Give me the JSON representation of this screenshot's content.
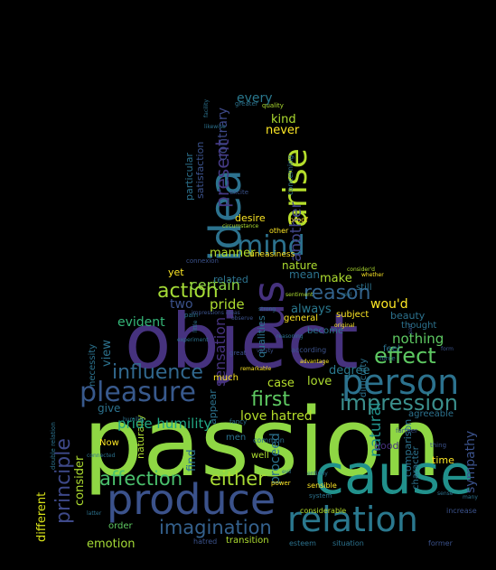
{
  "background": "#000000",
  "palette": {
    "purple": "#472d7b",
    "indigo": "#3b528b",
    "blue": "#2c728e",
    "teal": "#21918c",
    "green": "#28ae80",
    "lime": "#5ec962",
    "yellowgreen": "#addc30",
    "yellow": "#fde725"
  },
  "words": [
    {
      "text": "passion",
      "color": "#8fd744"
    },
    {
      "text": "object",
      "color": "#46327e"
    },
    {
      "text": "cause",
      "color": "#21918c"
    },
    {
      "text": "produce",
      "color": "#3b528b"
    },
    {
      "text": "relation",
      "color": "#2a788e"
    },
    {
      "text": "idea",
      "color": "#2c728e"
    },
    {
      "text": "person",
      "color": "#2c728e"
    },
    {
      "text": "us",
      "color": "#46327e"
    },
    {
      "text": "mind",
      "color": "#2c728e"
    },
    {
      "text": "arise",
      "color": "#b5de2b"
    },
    {
      "text": "pleasure",
      "color": "#38598c"
    },
    {
      "text": "impression",
      "color": "#3b8f8c"
    },
    {
      "text": "effect",
      "color": "#5ec962"
    },
    {
      "text": "reason",
      "color": "#33638d"
    },
    {
      "text": "action",
      "color": "#a5db36"
    },
    {
      "text": "influence",
      "color": "#31688e"
    },
    {
      "text": "imagination",
      "color": "#34618d"
    },
    {
      "text": "affection",
      "color": "#4ac16d"
    },
    {
      "text": "either",
      "color": "#a8db34"
    },
    {
      "text": "principle",
      "color": "#3e4989"
    },
    {
      "text": "present",
      "color": "#443983"
    },
    {
      "text": "first",
      "color": "#5ec962"
    },
    {
      "text": "pride humility",
      "color": "#22a884"
    },
    {
      "text": "love hatred",
      "color": "#b5de2b"
    },
    {
      "text": "nothing",
      "color": "#5ec962"
    },
    {
      "text": "sensation",
      "color": "#46337e"
    },
    {
      "text": "another",
      "color": "#414487"
    },
    {
      "text": "certain",
      "color": "#8fd744"
    },
    {
      "text": "evident",
      "color": "#35b779"
    },
    {
      "text": "two",
      "color": "#3b528b"
    },
    {
      "text": "pride",
      "color": "#addc30"
    },
    {
      "text": "always",
      "color": "#2a788e"
    },
    {
      "text": "wou'd",
      "color": "#fde725"
    },
    {
      "text": "make",
      "color": "#addc30"
    },
    {
      "text": "mean",
      "color": "#2c728e"
    },
    {
      "text": "nature",
      "color": "#addc30"
    },
    {
      "text": "manner",
      "color": "#b5de2b"
    },
    {
      "text": "degree",
      "color": "#2a788e"
    },
    {
      "text": "love",
      "color": "#addc30"
    },
    {
      "text": "case",
      "color": "#b5de2b"
    },
    {
      "text": "natural",
      "color": "#21918c"
    },
    {
      "text": "emotion",
      "color": "#a5db36"
    },
    {
      "text": "consider",
      "color": "#addc30"
    },
    {
      "text": "different",
      "color": "#d8e219"
    },
    {
      "text": "contrary",
      "color": "#3e4989"
    },
    {
      "text": "every",
      "color": "#2a788e"
    },
    {
      "text": "kind",
      "color": "#addc30"
    },
    {
      "text": "never",
      "color": "#fde725"
    },
    {
      "text": "view",
      "color": "#2c728e"
    },
    {
      "text": "give",
      "color": "#2c728e"
    },
    {
      "text": "particular",
      "color": "#2c728e"
    },
    {
      "text": "satisfaction",
      "color": "#3b528b"
    },
    {
      "text": "desire",
      "color": "#fde725"
    },
    {
      "text": "related",
      "color": "#2c728e"
    },
    {
      "text": "yet",
      "color": "#fde725"
    },
    {
      "text": "sympathy",
      "color": "#3b528b"
    },
    {
      "text": "beauty",
      "color": "#2c728e"
    },
    {
      "text": "agreeable",
      "color": "#2c728e"
    },
    {
      "text": "subject",
      "color": "#fde725"
    },
    {
      "text": "general",
      "color": "#fde725"
    },
    {
      "text": "thought",
      "color": "#2c728e"
    },
    {
      "text": "feel",
      "color": "#2c728e"
    },
    {
      "text": "time",
      "color": "#fde725"
    },
    {
      "text": "good",
      "color": "#46327e"
    },
    {
      "text": "transition",
      "color": "#addc30"
    },
    {
      "text": "order",
      "color": "#5ec962"
    },
    {
      "text": "Now",
      "color": "#fde725"
    },
    {
      "text": "men",
      "color": "#2c728e"
    },
    {
      "text": "well",
      "color": "#addc30"
    },
    {
      "text": "proceed",
      "color": "#2c728e"
    },
    {
      "text": "find",
      "color": "#2c728e"
    },
    {
      "text": "much",
      "color": "#fde725"
    },
    {
      "text": "become",
      "color": "#2c728e"
    },
    {
      "text": "still",
      "color": "#2c728e"
    },
    {
      "text": "esteem",
      "color": "#2c728e"
    },
    {
      "text": "hatred",
      "color": "#3b528b"
    },
    {
      "text": "situation",
      "color": "#2c728e"
    },
    {
      "text": "former",
      "color": "#3b528b"
    },
    {
      "text": "increase",
      "color": "#3b528b"
    },
    {
      "text": "considerable",
      "color": "#b5de2b"
    },
    {
      "text": "sensible",
      "color": "#fde725"
    },
    {
      "text": "power",
      "color": "#fde725"
    },
    {
      "text": "appear",
      "color": "#2c728e"
    },
    {
      "text": "qualities",
      "color": "#2c728e"
    },
    {
      "text": "according",
      "color": "#3b528b"
    },
    {
      "text": "necessity",
      "color": "#2c728e"
    },
    {
      "text": "comparison",
      "color": "#2c728e"
    },
    {
      "text": "character",
      "color": "#2c728e"
    },
    {
      "text": "difficulty",
      "color": "#2c728e"
    },
    {
      "text": "naturally",
      "color": "#addc30"
    },
    {
      "text": "uneasiness",
      "color": "#fde725"
    },
    {
      "text": "connexion",
      "color": "#3b528b"
    },
    {
      "text": "proof",
      "color": "#fde725"
    },
    {
      "text": "other",
      "color": "#fde725"
    },
    {
      "text": "excite",
      "color": "#3b528b"
    },
    {
      "text": "concerning",
      "color": "#2c728e"
    },
    {
      "text": "greater",
      "color": "#2c728e"
    },
    {
      "text": "quality",
      "color": "#addc30"
    },
    {
      "text": "strong",
      "color": "#2c728e"
    },
    {
      "text": "original",
      "color": "#fde725"
    },
    {
      "text": "sentiment",
      "color": "#addc30"
    },
    {
      "text": "common",
      "color": "#2c728e"
    },
    {
      "text": "system",
      "color": "#2c728e"
    },
    {
      "text": "force",
      "color": "#2c728e"
    },
    {
      "text": "great",
      "color": "#3b528b"
    },
    {
      "text": "pain",
      "color": "#2c728e"
    },
    {
      "text": "fancy",
      "color": "#2c728e"
    },
    {
      "text": "latter",
      "color": "#2c728e"
    },
    {
      "text": "experiment",
      "color": "#2c728e"
    },
    {
      "text": "little",
      "color": "#2c728e"
    },
    {
      "text": "evil",
      "color": "#2c728e"
    },
    {
      "text": "entirely",
      "color": "#2c728e"
    },
    {
      "text": "farther",
      "color": "#3b528b"
    },
    {
      "text": "thing",
      "color": "#3b528b"
    },
    {
      "text": "advantage",
      "color": "#fde725"
    },
    {
      "text": "connected",
      "color": "#2c728e"
    },
    {
      "text": "double relation",
      "color": "#2c728e"
    },
    {
      "text": "facility",
      "color": "#2c728e"
    },
    {
      "text": "humility",
      "color": "#2c728e"
    },
    {
      "text": "vanity",
      "color": "#3b528b"
    },
    {
      "text": "part",
      "color": "#3b528b"
    },
    {
      "text": "circumstance",
      "color": "#addc30"
    },
    {
      "text": "impressions ideas",
      "color": "#3b528b"
    },
    {
      "text": "reasoning",
      "color": "#2c728e"
    },
    {
      "text": "likewise",
      "color": "#2c728e"
    },
    {
      "text": "real",
      "color": "#2c728e"
    },
    {
      "text": "consider'd",
      "color": "#addc30"
    },
    {
      "text": "whether",
      "color": "#fde725"
    },
    {
      "text": "form",
      "color": "#3b528b"
    },
    {
      "text": "sense",
      "color": "#2c728e"
    },
    {
      "text": "many",
      "color": "#2c728e"
    },
    {
      "text": "remarkable",
      "color": "#fde725"
    },
    {
      "text": "observe",
      "color": "#3b528b"
    }
  ]
}
